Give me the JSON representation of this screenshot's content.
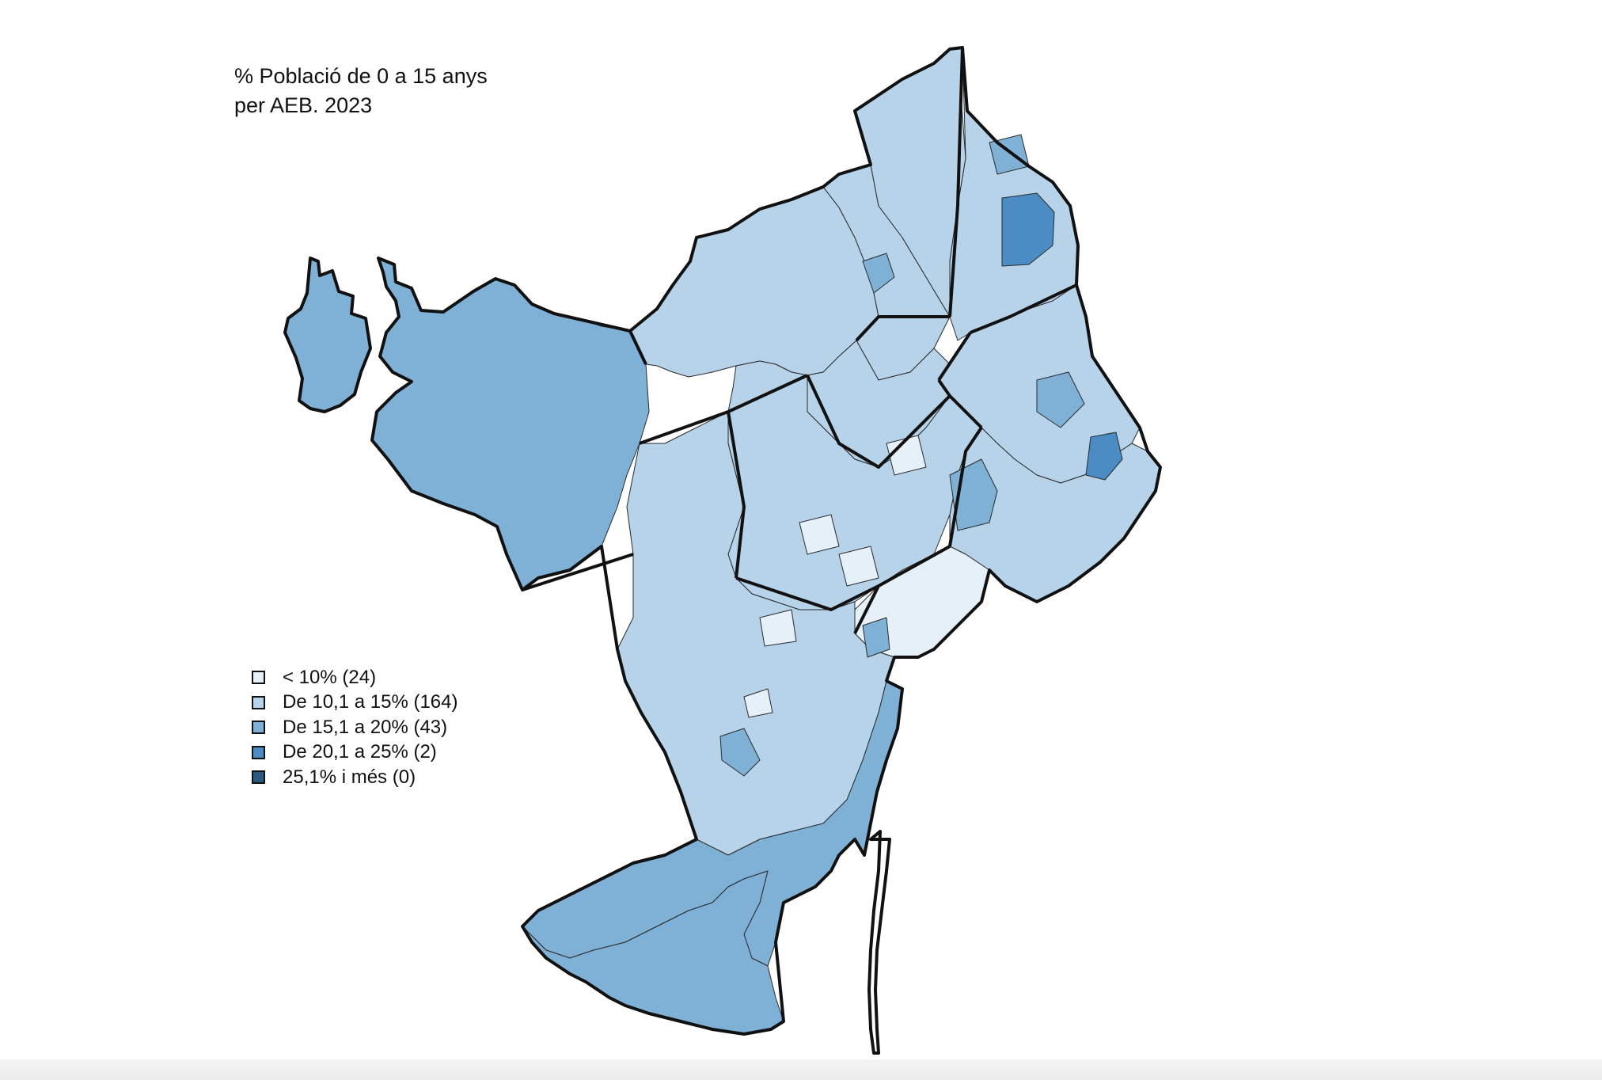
{
  "title": {
    "line1": "% Població de 0 a 15 anys",
    "line2": "per AEB. 2023"
  },
  "legend": [
    {
      "label": "< 10% (24)",
      "color": "#e6f0f8"
    },
    {
      "label": "De 10,1 a 15% (164)",
      "color": "#b6d3e9"
    },
    {
      "label": "De 15,1 a 20% (43)",
      "color": "#7fb0d5"
    },
    {
      "label": "De 20,1 a 25% (2)",
      "color": "#4a8cc3"
    },
    {
      "label": "25,1% i més (0)",
      "color": "#2b5a80"
    }
  ]
}
